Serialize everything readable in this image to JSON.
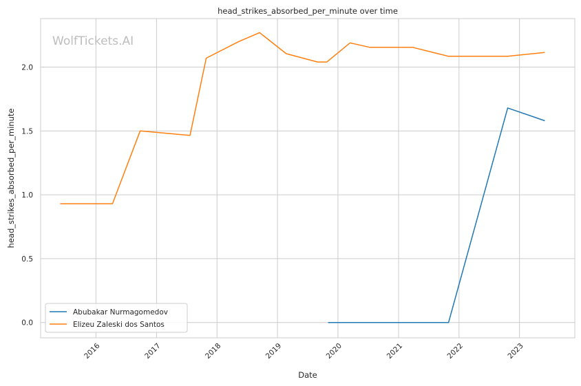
{
  "chart_data": {
    "type": "line",
    "title": "head_strikes_absorbed_per_minute over time",
    "xlabel": "Date",
    "ylabel": "head_strikes_absorbed_per_minute",
    "watermark": "WolfTickets.AI",
    "xlim": [
      "2015-02-01",
      "2023-12-01"
    ],
    "ylim": [
      -0.12,
      2.38
    ],
    "x_ticks": [
      "2016",
      "2017",
      "2018",
      "2019",
      "2020",
      "2021",
      "2022",
      "2023"
    ],
    "y_ticks": [
      "0.0",
      "0.5",
      "1.0",
      "1.5",
      "2.0"
    ],
    "grid": true,
    "legend_position": "lower-left",
    "series": [
      {
        "name": "Abubakar Nurmagomedov",
        "color": "#1f77b4",
        "points": [
          {
            "x": "2019-11-02",
            "y": 0.0
          },
          {
            "x": "2021-10-30",
            "y": 0.0
          },
          {
            "x": "2022-10-22",
            "y": 1.68
          },
          {
            "x": "2023-06-03",
            "y": 1.58
          }
        ]
      },
      {
        "name": "Elizeu Zaleski dos Santos",
        "color": "#ff7f0e",
        "points": [
          {
            "x": "2015-05-30",
            "y": 0.93
          },
          {
            "x": "2016-04-10",
            "y": 0.93
          },
          {
            "x": "2016-09-24",
            "y": 1.5
          },
          {
            "x": "2017-07-22",
            "y": 1.465
          },
          {
            "x": "2017-10-28",
            "y": 2.07
          },
          {
            "x": "2018-05-12",
            "y": 2.2
          },
          {
            "x": "2018-09-15",
            "y": 2.27
          },
          {
            "x": "2019-02-23",
            "y": 2.105
          },
          {
            "x": "2019-08-31",
            "y": 2.04
          },
          {
            "x": "2019-10-26",
            "y": 2.04
          },
          {
            "x": "2020-03-14",
            "y": 2.19
          },
          {
            "x": "2020-07-11",
            "y": 2.155
          },
          {
            "x": "2021-03-27",
            "y": 2.155
          },
          {
            "x": "2021-10-30",
            "y": 2.085
          },
          {
            "x": "2022-10-22",
            "y": 2.085
          },
          {
            "x": "2023-06-03",
            "y": 2.115
          }
        ]
      }
    ]
  }
}
